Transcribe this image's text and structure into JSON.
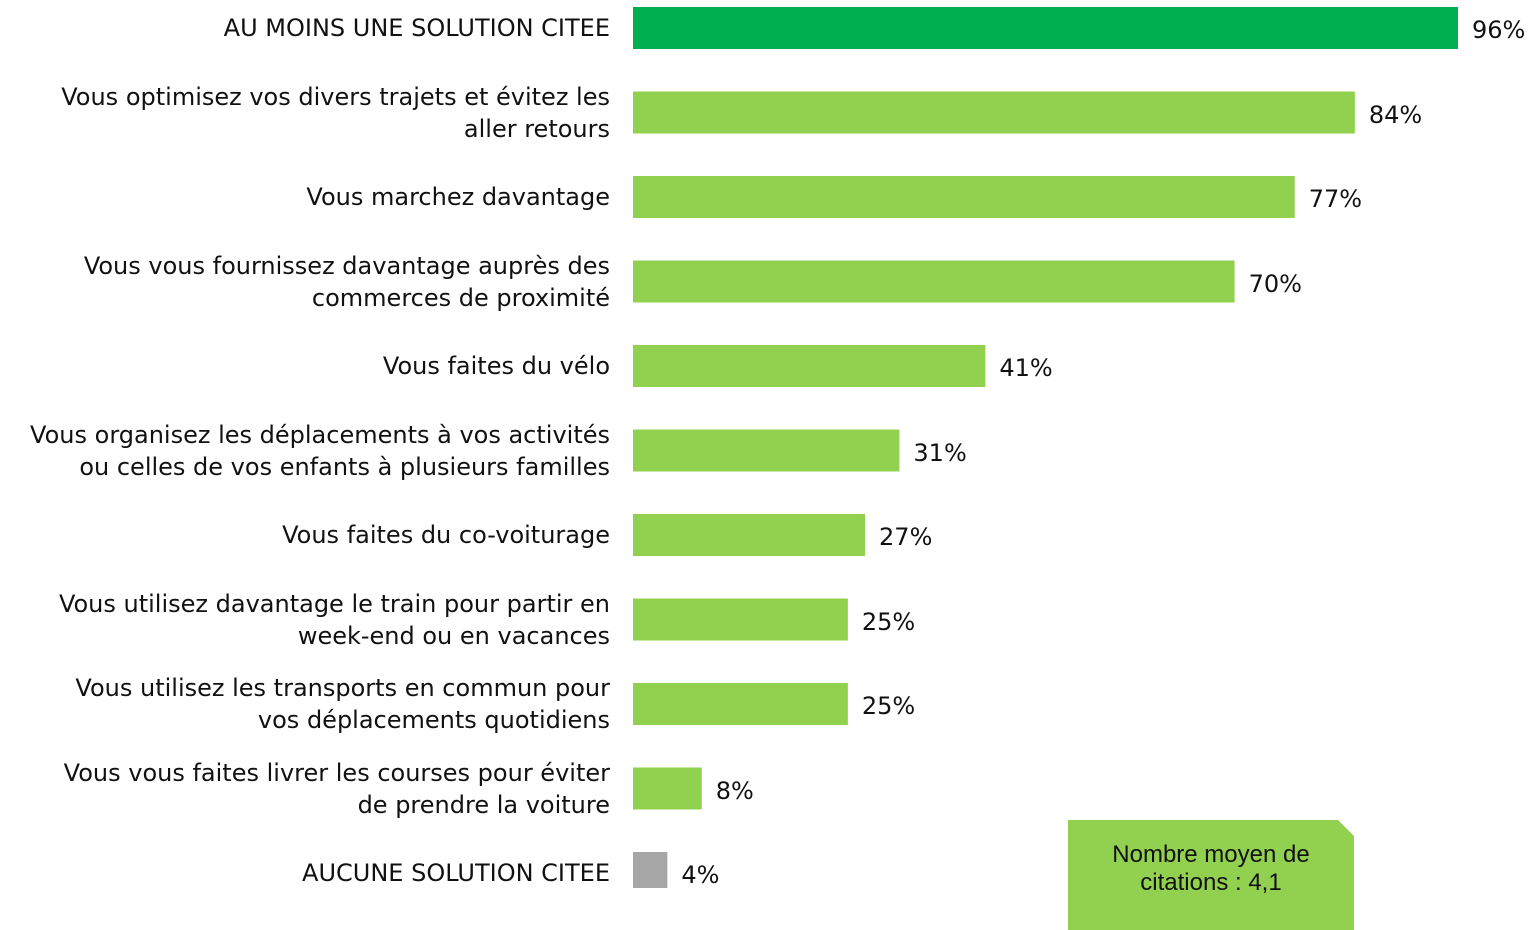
{
  "chart_data": {
    "type": "bar",
    "orientation": "horizontal",
    "categories": [
      "AU MOINS UNE SOLUTION CITEE",
      "Vous optimisez vos divers trajets et évitez les\naller retours",
      "Vous marchez davantage",
      "Vous vous fournissez davantage auprès des\ncommerces de proximité",
      "Vous faites du vélo",
      "Vous organisez les déplacements à vos activités\nou celles de vos enfants à plusieurs familles",
      "Vous faites du co-voiturage",
      "Vous utilisez davantage le train pour partir en\nweek-end ou en vacances",
      "Vous utilisez les transports en commun pour\nvos déplacements quotidiens",
      "Vous vous faites livrer les courses pour éviter\nde prendre la voiture",
      "AUCUNE SOLUTION CITEE"
    ],
    "values": [
      96,
      84,
      77,
      70,
      41,
      31,
      27,
      25,
      25,
      8,
      4
    ],
    "value_labels": [
      "96%",
      "84%",
      "77%",
      "70%",
      "41%",
      "31%",
      "27%",
      "25%",
      "25%",
      "8%",
      "4%"
    ],
    "colors": [
      "#00b050",
      "#92d050",
      "#92d050",
      "#92d050",
      "#92d050",
      "#92d050",
      "#92d050",
      "#92d050",
      "#92d050",
      "#92d050",
      "#a6a6a6"
    ],
    "annotation": "Nombre moyen de\ncitations : 4,1"
  }
}
